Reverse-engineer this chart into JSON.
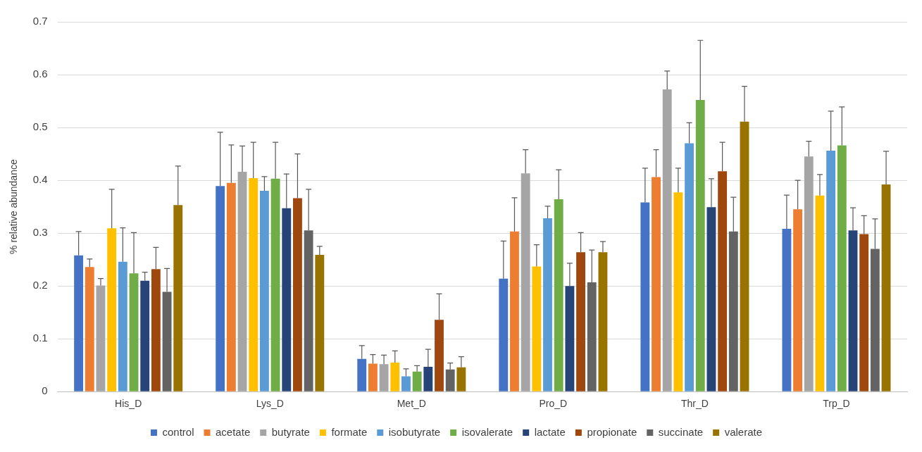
{
  "chart_data": {
    "type": "bar",
    "ylabel": "% relative abundance",
    "categories": [
      "His_D",
      "Lys_D",
      "Met_D",
      "Pro_D",
      "Thr_D",
      "Trp_D"
    ],
    "ylim": [
      0,
      0.7
    ],
    "yticks": [
      0,
      0.1,
      0.2,
      0.3,
      0.4,
      0.5,
      0.6,
      0.7
    ],
    "grid": "y",
    "legend": "bottom",
    "series": [
      {
        "name": "control",
        "color": "#4472c4",
        "values": [
          0.258,
          0.389,
          0.062,
          0.214,
          0.358,
          0.308
        ],
        "errors": [
          [
            0.258,
            0.303
          ],
          [
            0.389,
            0.491
          ],
          [
            0.062,
            0.087
          ],
          [
            0.214,
            0.285
          ],
          [
            0.358,
            0.423
          ],
          [
            0.308,
            0.372
          ]
        ]
      },
      {
        "name": "acetate",
        "color": "#ed7d31",
        "values": [
          0.236,
          0.395,
          0.053,
          0.303,
          0.406,
          0.345
        ],
        "errors": [
          [
            0.236,
            0.251
          ],
          [
            0.395,
            0.467
          ],
          [
            0.053,
            0.07
          ],
          [
            0.303,
            0.367
          ],
          [
            0.406,
            0.458
          ],
          [
            0.345,
            0.4
          ]
        ]
      },
      {
        "name": "butyrate",
        "color": "#a5a5a5",
        "values": [
          0.201,
          0.416,
          0.052,
          0.413,
          0.572,
          0.445
        ],
        "errors": [
          [
            0.201,
            0.214
          ],
          [
            0.416,
            0.465
          ],
          [
            0.052,
            0.069
          ],
          [
            0.413,
            0.458
          ],
          [
            0.572,
            0.607
          ],
          [
            0.445,
            0.474
          ]
        ]
      },
      {
        "name": "formate",
        "color": "#ffc000",
        "values": [
          0.309,
          0.404,
          0.055,
          0.237,
          0.377,
          0.371
        ],
        "errors": [
          [
            0.309,
            0.383
          ],
          [
            0.404,
            0.472
          ],
          [
            0.055,
            0.077
          ],
          [
            0.237,
            0.278
          ],
          [
            0.377,
            0.423
          ],
          [
            0.371,
            0.411
          ]
        ]
      },
      {
        "name": "isobutyrate",
        "color": "#5b9bd5",
        "values": [
          0.246,
          0.38,
          0.029,
          0.328,
          0.47,
          0.456
        ],
        "errors": [
          [
            0.246,
            0.31
          ],
          [
            0.38,
            0.407
          ],
          [
            0.029,
            0.043
          ],
          [
            0.328,
            0.351
          ],
          [
            0.47,
            0.509
          ],
          [
            0.456,
            0.531
          ]
        ]
      },
      {
        "name": "isovalerate",
        "color": "#70ad47",
        "values": [
          0.224,
          0.403,
          0.038,
          0.364,
          0.552,
          0.466
        ],
        "errors": [
          [
            0.224,
            0.301
          ],
          [
            0.403,
            0.472
          ],
          [
            0.038,
            0.049
          ],
          [
            0.364,
            0.42
          ],
          [
            0.552,
            0.665
          ],
          [
            0.466,
            0.539
          ]
        ]
      },
      {
        "name": "lactate",
        "color": "#264478",
        "values": [
          0.21,
          0.347,
          0.047,
          0.2,
          0.349,
          0.305
        ],
        "errors": [
          [
            0.21,
            0.226
          ],
          [
            0.347,
            0.412
          ],
          [
            0.047,
            0.08
          ],
          [
            0.2,
            0.243
          ],
          [
            0.349,
            0.403
          ],
          [
            0.305,
            0.348
          ]
        ]
      },
      {
        "name": "propionate",
        "color": "#9e480e",
        "values": [
          0.232,
          0.366,
          0.136,
          0.264,
          0.417,
          0.298
        ],
        "errors": [
          [
            0.232,
            0.273
          ],
          [
            0.366,
            0.45
          ],
          [
            0.136,
            0.185
          ],
          [
            0.264,
            0.301
          ],
          [
            0.417,
            0.472
          ],
          [
            0.298,
            0.333
          ]
        ]
      },
      {
        "name": "succinate",
        "color": "#636363",
        "values": [
          0.189,
          0.305,
          0.042,
          0.207,
          0.303,
          0.27
        ],
        "errors": [
          [
            0.189,
            0.233
          ],
          [
            0.305,
            0.383
          ],
          [
            0.042,
            0.054
          ],
          [
            0.207,
            0.268
          ],
          [
            0.303,
            0.368
          ],
          [
            0.27,
            0.327
          ]
        ]
      },
      {
        "name": "valerate",
        "color": "#997300",
        "values": [
          0.353,
          0.259,
          0.046,
          0.264,
          0.511,
          0.392
        ],
        "errors": [
          [
            0.353,
            0.427
          ],
          [
            0.259,
            0.275
          ],
          [
            0.046,
            0.066
          ],
          [
            0.264,
            0.284
          ],
          [
            0.511,
            0.578
          ],
          [
            0.392,
            0.455
          ]
        ]
      }
    ]
  }
}
